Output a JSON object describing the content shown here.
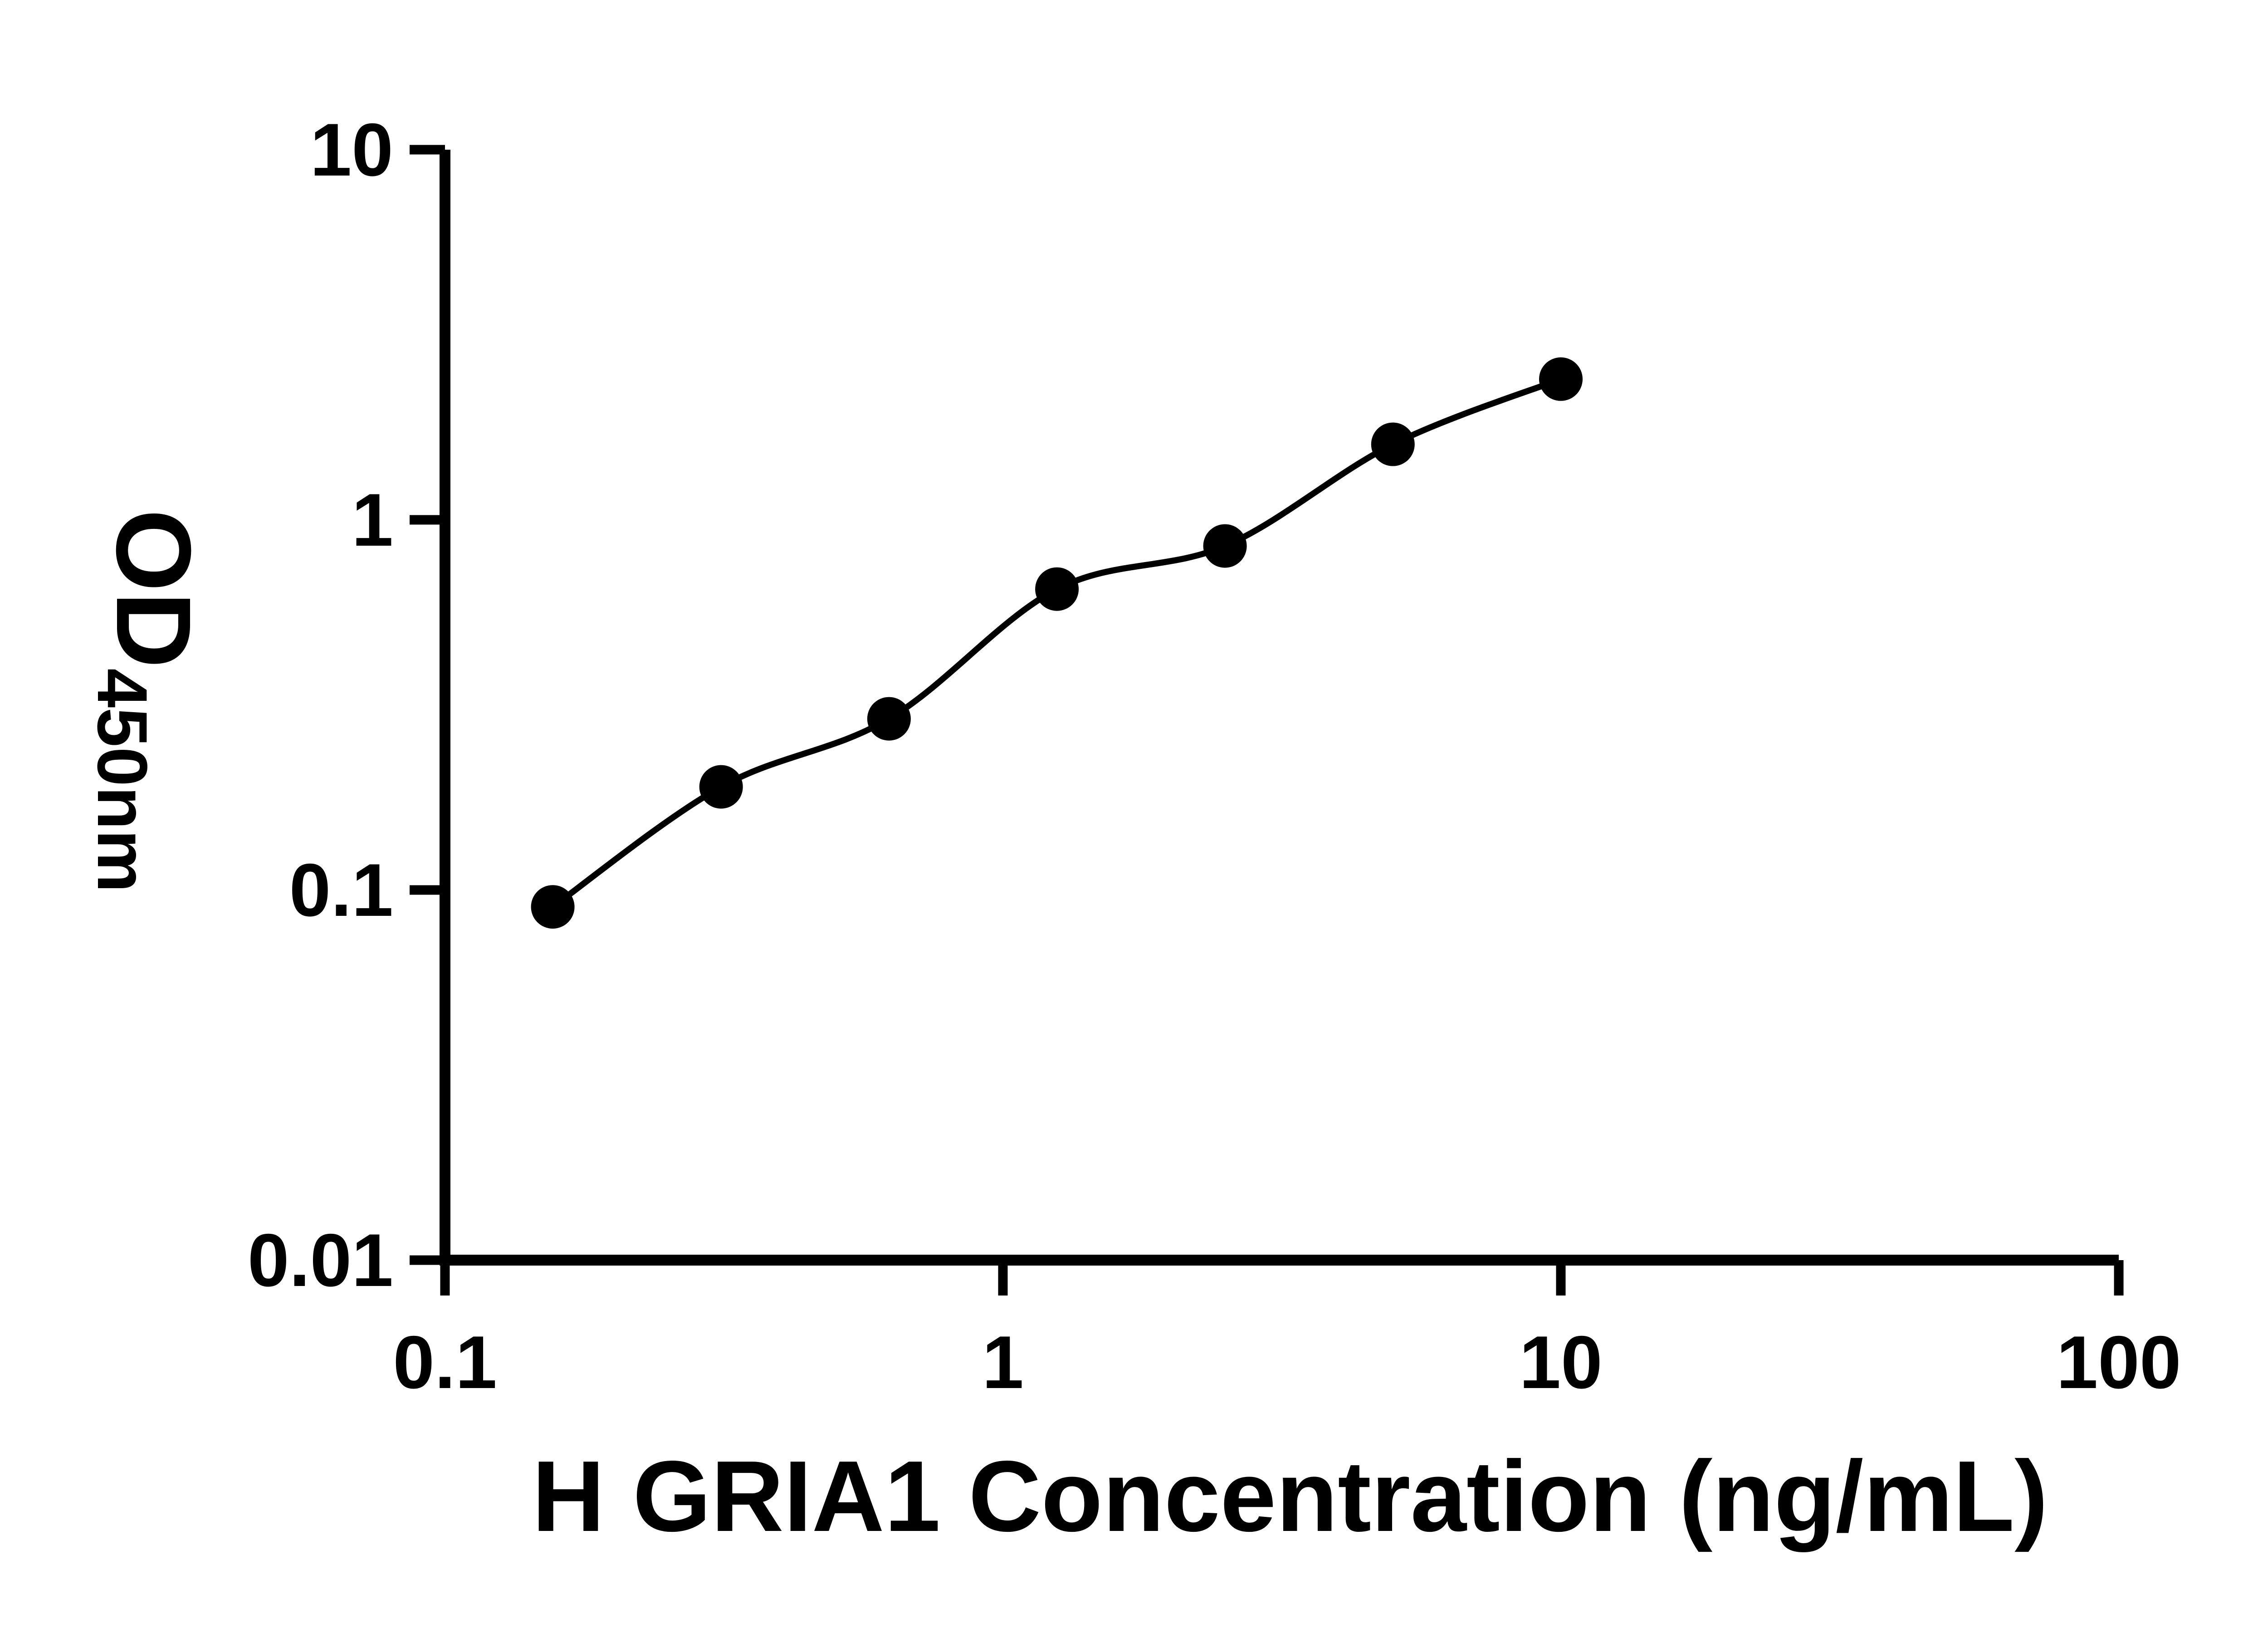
{
  "chart_data": {
    "type": "scatter",
    "title": "",
    "xlabel": "H GRIA1 Concentration (ng/mL)",
    "ylabel": "OD450nm",
    "ylabel_main": "OD",
    "ylabel_sub": "450nm",
    "x_scale": "log10",
    "y_scale": "log10",
    "xlim": [
      0.1,
      100
    ],
    "ylim": [
      0.01,
      10
    ],
    "x_ticks": {
      "values": [
        0.1,
        1,
        10,
        100
      ],
      "labels": [
        "0.1",
        "1",
        "10",
        "100"
      ]
    },
    "y_ticks": {
      "values": [
        0.01,
        0.1,
        1,
        10
      ],
      "labels": [
        "0.01",
        "0.1",
        "1",
        "10"
      ]
    },
    "grid": false,
    "legend": false,
    "marker": {
      "shape": "circle",
      "color": "#000000"
    },
    "fit_line": {
      "show": true,
      "color": "#000000"
    },
    "points": [
      {
        "x": 0.156,
        "y": 0.09
      },
      {
        "x": 0.3125,
        "y": 0.19
      },
      {
        "x": 0.625,
        "y": 0.29
      },
      {
        "x": 1.25,
        "y": 0.65
      },
      {
        "x": 2.5,
        "y": 0.85
      },
      {
        "x": 5,
        "y": 1.6
      },
      {
        "x": 10,
        "y": 2.4
      }
    ]
  }
}
